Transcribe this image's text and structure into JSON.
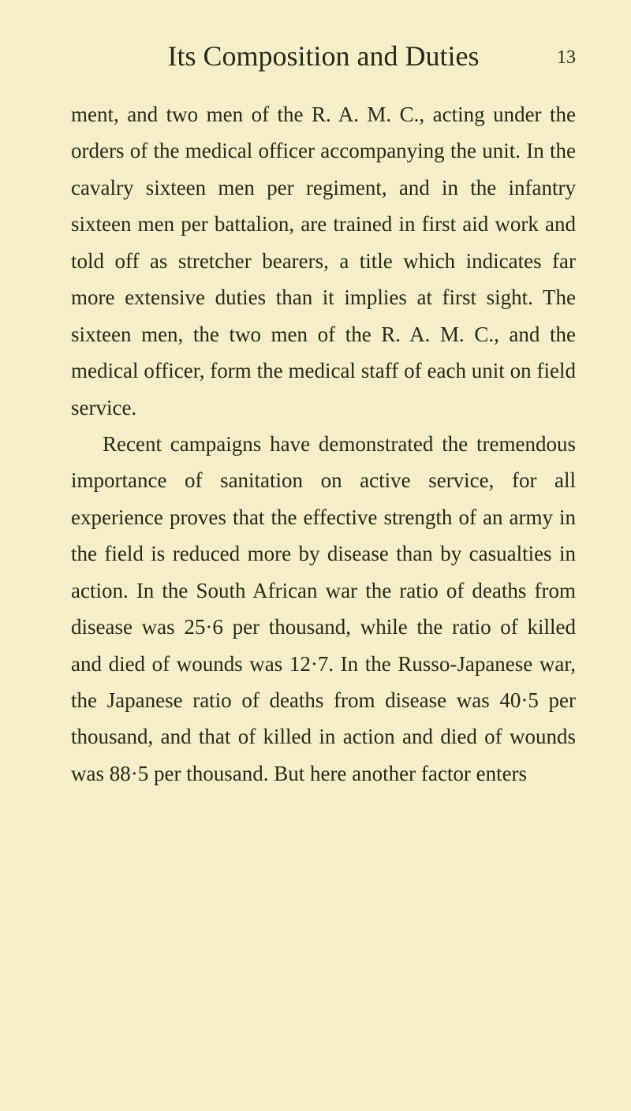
{
  "header": {
    "title": "Its Composition and Duties",
    "page_number": "13"
  },
  "paragraphs": [
    {
      "text": "ment, and two men of the R. A. M. C., acting under the orders of the medical officer accompanying the unit. In the cavalry sixteen men per regiment, and in the infantry sixteen men per battalion, are trained in first aid work and told off as stretcher bearers, a title which indicates far more extensive duties than it implies at first sight. The sixteen men, the two men of the R. A. M. C., and the medical officer, form the medical staff of each unit on field service.",
      "indented": false
    },
    {
      "text": "Recent campaigns have demonstrated the tremendous importance of sanitation on active service, for all experience proves that the effective strength of an army in the field is reduced more by disease than by casualties in action. In the South African war the ratio of deaths from disease was 25·6 per thousand, while the ratio of killed and died of wounds was 12·7. In the Russo-Japanese war, the Japanese ratio of deaths from disease was 40·5 per thousand, and that of killed in action and died of wounds was 88·5 per thousand. But here another factor enters",
      "indented": true
    }
  ],
  "styling": {
    "background_color": "#f5eec8",
    "text_color": "#2a2a1a",
    "header_fontsize": 36,
    "body_fontsize": 27,
    "page_number_fontsize": 24,
    "line_height": 1.72,
    "font_family": "Georgia, Times New Roman, serif"
  }
}
